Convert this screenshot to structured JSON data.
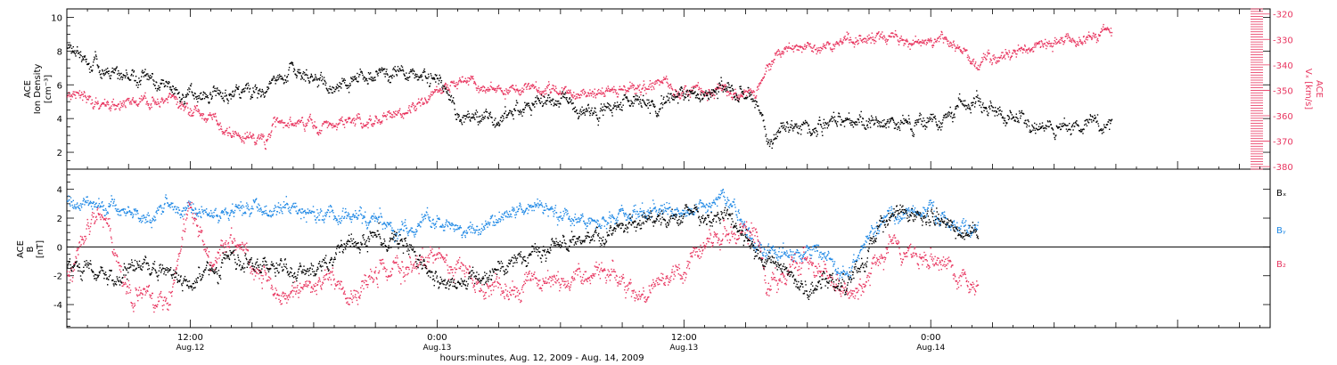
{
  "colors": {
    "black": "#000000",
    "pink": "#e8355f",
    "blue": "#1e88e5"
  },
  "chart_data": [
    {
      "type": "scatter",
      "panel": "top",
      "ylabel_lines": [
        "ACE",
        "Ion Density",
        "[cm⁻³]"
      ],
      "ylim": [
        1,
        10.5
      ],
      "yticks": [
        2,
        4,
        6,
        8,
        10
      ],
      "y2label_lines": [
        "ACE",
        "Vₓ [km/s]"
      ],
      "y2lim": [
        -381,
        -318
      ],
      "y2ticks": [
        -380,
        -370,
        -360,
        -350,
        -340,
        -330,
        -320
      ],
      "x_unit": "hours since Aug.12 00:00",
      "xlim": [
        6.0,
        64.5
      ],
      "series": [
        {
          "name": "Ion Density",
          "axis": "left",
          "color": "#000000",
          "x": [
            6,
            8,
            10,
            12,
            14,
            15.8,
            16,
            17,
            18,
            19,
            20,
            22,
            24,
            25,
            26,
            28,
            30,
            31,
            32,
            33.5,
            34,
            36,
            38,
            39.5,
            40,
            41,
            42,
            44,
            45,
            46,
            48,
            50,
            52,
            54,
            56
          ],
          "y": [
            8.3,
            6.9,
            6.1,
            5.3,
            5.6,
            6.2,
            6.6,
            7.0,
            6.2,
            5.7,
            6.6,
            6.9,
            6.2,
            4.4,
            4.2,
            4.6,
            5.2,
            4.6,
            4.6,
            5.1,
            4.9,
            5.3,
            5.6,
            5.6,
            2.6,
            3.3,
            3.6,
            3.9,
            3.7,
            3.5,
            4.0,
            5.2,
            4.1,
            3.6,
            3.6
          ]
        },
        {
          "name": "Vx",
          "axis": "right",
          "color": "#e8355f",
          "x": [
            6,
            8,
            10,
            12,
            14,
            15.8,
            16,
            18,
            20,
            22,
            24,
            25,
            26,
            28,
            30,
            31,
            32,
            34,
            36,
            38,
            39.5,
            40,
            41,
            42,
            44,
            46,
            48,
            49,
            50,
            52,
            54,
            56
          ],
          "y": [
            -352,
            -355,
            -354,
            -356,
            -367,
            -369,
            -363,
            -364,
            -362,
            -360,
            -351,
            -345,
            -348,
            -350,
            -349,
            -351,
            -351,
            -348,
            -350,
            -350,
            -349,
            -340,
            -334,
            -333,
            -330,
            -329,
            -331,
            -331,
            -339,
            -335,
            -331,
            -327
          ]
        }
      ]
    },
    {
      "type": "scatter",
      "panel": "bottom",
      "ylabel_lines": [
        "ACE",
        "B",
        "[nT]"
      ],
      "ylim": [
        -5.6,
        5.4
      ],
      "yticks": [
        -4,
        -2,
        0,
        2,
        4
      ],
      "zero_line": true,
      "x_unit": "hours since Aug.12 00:00",
      "xlim": [
        6.0,
        64.5
      ],
      "xticks": [
        {
          "x": 12,
          "time": "12:00",
          "date": "Aug.12"
        },
        {
          "x": 24,
          "time": "0:00",
          "date": "Aug.13"
        },
        {
          "x": 36,
          "time": "12:00",
          "date": "Aug.13"
        },
        {
          "x": 48,
          "time": "0:00",
          "date": "Aug.14"
        }
      ],
      "xlabel": "hours:minutes, Aug. 12, 2009 - Aug. 14, 2009",
      "series": [
        {
          "name": "Bₓ",
          "color": "#000000",
          "x": [
            6,
            8,
            10,
            12,
            14,
            16,
            18,
            20,
            22,
            24,
            26,
            28,
            30,
            32,
            34,
            36,
            38,
            39.5,
            40,
            42,
            44,
            46,
            48,
            50
          ],
          "y": [
            -1.5,
            -1.8,
            -1.2,
            -2.4,
            -0.8,
            -1.5,
            -1.9,
            0.4,
            0.7,
            -2.6,
            -2.3,
            -0.6,
            0.4,
            0.9,
            1.9,
            2.3,
            2.1,
            -0.5,
            -0.8,
            -2.8,
            -2.5,
            2.4,
            2.1,
            1.0
          ]
        },
        {
          "name": "Bᵧ",
          "color": "#1e88e5",
          "x": [
            6,
            8,
            10,
            12,
            14,
            16,
            18,
            20,
            22,
            24,
            26,
            28,
            30,
            32,
            34,
            36,
            38,
            39.5,
            40,
            42,
            44,
            45,
            46,
            48,
            50
          ],
          "y": [
            3.1,
            2.6,
            2.4,
            2.7,
            2.5,
            2.6,
            2.2,
            2.3,
            1.4,
            1.7,
            1.3,
            2.8,
            2.4,
            1.8,
            2.6,
            2.3,
            3.8,
            -0.3,
            -0.6,
            -0.4,
            -1.8,
            0.9,
            2.6,
            2.3,
            1.0
          ]
        },
        {
          "name": "B₂",
          "color": "#e8355f",
          "x": [
            6,
            7.5,
            9,
            11,
            12,
            13,
            14,
            16,
            18,
            20,
            22,
            24,
            26,
            28,
            30,
            32,
            34,
            36,
            37,
            39.5,
            40,
            42,
            44,
            46,
            48,
            50
          ],
          "y": [
            -2.0,
            3.0,
            -3.0,
            -3.8,
            3.6,
            -1.5,
            0.6,
            -3.0,
            -2.5,
            -3.1,
            -1.6,
            -0.5,
            -3.0,
            -2.4,
            -2.0,
            -1.6,
            -2.9,
            -1.5,
            0.3,
            1.0,
            -2.6,
            -1.0,
            -3.1,
            0.0,
            -0.6,
            -2.9
          ]
        }
      ]
    }
  ]
}
